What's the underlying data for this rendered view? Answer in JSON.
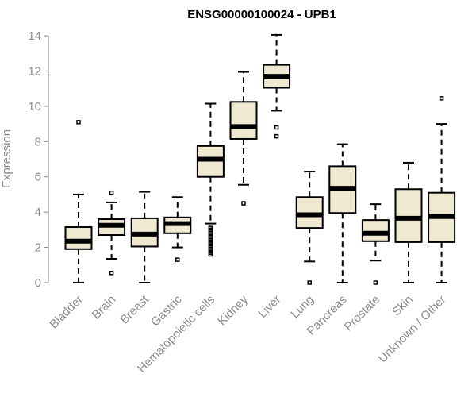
{
  "chart_data": {
    "type": "boxplot",
    "title": "ENSG00000100024 - UPB1",
    "ylabel": "Expression",
    "xlabel": "",
    "ylim": [
      0,
      14
    ],
    "yticks": [
      0,
      2,
      4,
      6,
      8,
      10,
      12,
      14
    ],
    "box_color": "#efe9d2",
    "categories": [
      "Bladder",
      "Brain",
      "Breast",
      "Gastric",
      "Hematopoietic cells",
      "Kidney",
      "Liver",
      "Lung",
      "Pancreas",
      "Prostate",
      "Skin",
      "Unknown / Other"
    ],
    "boxes": [
      {
        "category": "Bladder",
        "whisker_low": 0.0,
        "q1": 1.9,
        "median": 2.35,
        "q3": 3.15,
        "whisker_high": 5.0,
        "outliers": [
          9.1
        ]
      },
      {
        "category": "Brain",
        "whisker_low": 1.35,
        "q1": 2.7,
        "median": 3.25,
        "q3": 3.6,
        "whisker_high": 4.55,
        "outliers": [
          5.1,
          0.55
        ]
      },
      {
        "category": "Breast",
        "whisker_low": 0.0,
        "q1": 2.05,
        "median": 2.75,
        "q3": 3.65,
        "whisker_high": 5.15,
        "outliers": []
      },
      {
        "category": "Gastric",
        "whisker_low": 2.0,
        "q1": 2.8,
        "median": 3.35,
        "q3": 3.7,
        "whisker_high": 4.85,
        "outliers": [
          1.3
        ]
      },
      {
        "category": "Hematopoietic cells",
        "whisker_low": 3.35,
        "q1": 6.0,
        "median": 7.0,
        "q3": 7.75,
        "whisker_high": 10.15,
        "outliers": [
          3.1,
          3.0,
          2.9,
          2.8,
          2.7,
          2.6,
          2.5,
          2.4,
          2.3,
          2.2,
          2.1,
          2.0,
          1.9,
          1.8,
          1.7,
          1.6
        ]
      },
      {
        "category": "Kidney",
        "whisker_low": 5.55,
        "q1": 8.15,
        "median": 8.85,
        "q3": 10.25,
        "whisker_high": 11.95,
        "outliers": [
          4.5
        ]
      },
      {
        "category": "Liver",
        "whisker_low": 9.75,
        "q1": 11.05,
        "median": 11.7,
        "q3": 12.35,
        "whisker_high": 14.05,
        "outliers": [
          8.8,
          8.3
        ]
      },
      {
        "category": "Lung",
        "whisker_low": 1.2,
        "q1": 3.1,
        "median": 3.85,
        "q3": 4.85,
        "whisker_high": 6.3,
        "outliers": [
          0.0
        ]
      },
      {
        "category": "Pancreas",
        "whisker_low": 0.0,
        "q1": 3.95,
        "median": 5.35,
        "q3": 6.6,
        "whisker_high": 7.85,
        "outliers": []
      },
      {
        "category": "Prostate",
        "whisker_low": 1.25,
        "q1": 2.35,
        "median": 2.8,
        "q3": 3.55,
        "whisker_high": 4.45,
        "outliers": [
          0.0
        ]
      },
      {
        "category": "Skin",
        "whisker_low": 0.0,
        "q1": 2.3,
        "median": 3.65,
        "q3": 5.3,
        "whisker_high": 6.8,
        "outliers": []
      },
      {
        "category": "Unknown / Other",
        "whisker_low": 0.0,
        "q1": 2.3,
        "median": 3.75,
        "q3": 5.1,
        "whisker_high": 9.0,
        "outliers": [
          10.45
        ]
      }
    ]
  }
}
